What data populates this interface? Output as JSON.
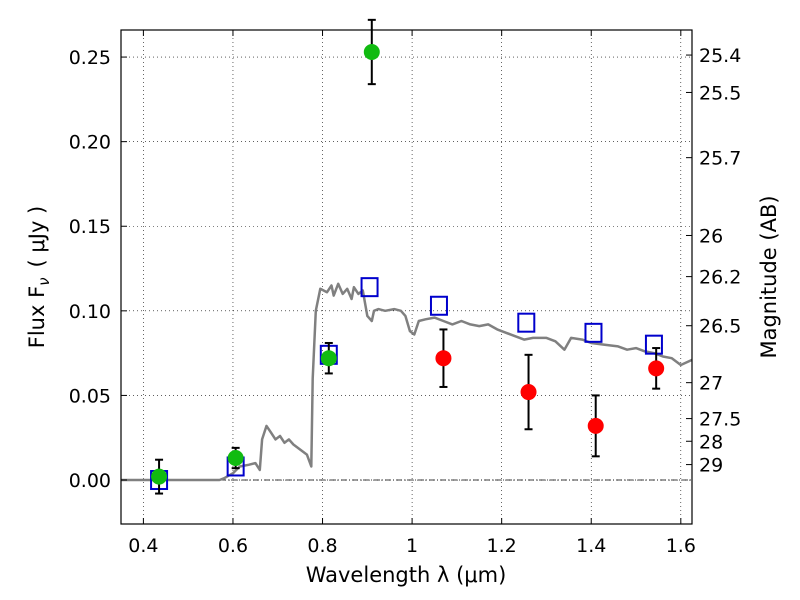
{
  "chart_data": {
    "type": "scatter",
    "xlabel": "Wavelength  λ (μm)",
    "ylabel": "Flux  F",
    "ylabel_sub": "ν",
    "ylabel_unit": "( μJy )",
    "y2label": "Magnitude (AB)",
    "xlim": [
      0.35,
      1.625
    ],
    "ylim": [
      -0.026,
      0.266
    ],
    "x_ticks": [
      {
        "value": 0.4,
        "label": "0.4"
      },
      {
        "value": 0.6,
        "label": "0.6"
      },
      {
        "value": 0.8,
        "label": "0.8"
      },
      {
        "value": 1.0,
        "label": "1"
      },
      {
        "value": 1.2,
        "label": "1.2"
      },
      {
        "value": 1.4,
        "label": "1.4"
      },
      {
        "value": 1.6,
        "label": "1.6"
      }
    ],
    "y_ticks": [
      {
        "value": 0.0,
        "label": "0.00"
      },
      {
        "value": 0.05,
        "label": "0.05"
      },
      {
        "value": 0.1,
        "label": "0.10"
      },
      {
        "value": 0.15,
        "label": "0.15"
      },
      {
        "value": 0.2,
        "label": "0.20"
      },
      {
        "value": 0.25,
        "label": "0.25"
      }
    ],
    "y2_ticks": [
      {
        "mag": 25.4,
        "label": "25.4"
      },
      {
        "mag": 25.5,
        "label": "25.5"
      },
      {
        "mag": 25.7,
        "label": "25.7"
      },
      {
        "mag": 26,
        "label": "26"
      },
      {
        "mag": 26.2,
        "label": "26.2"
      },
      {
        "mag": 26.5,
        "label": "26.5"
      },
      {
        "mag": 27,
        "label": "27"
      },
      {
        "mag": 27.5,
        "label": "27.5"
      },
      {
        "mag": 28,
        "label": "28"
      },
      {
        "mag": 29,
        "label": "29"
      }
    ],
    "grid": true,
    "zero_line": true,
    "colors": {
      "model": "#808080",
      "model_photometry": "#0000cc",
      "detections": "#11bb11",
      "upper_points": "#ff0000",
      "errorbar": "#000000"
    },
    "model_spectrum": [
      [
        0.35,
        0.0
      ],
      [
        0.57,
        0.0
      ],
      [
        0.58,
        0.001
      ],
      [
        0.6,
        0.004
      ],
      [
        0.615,
        0.008
      ],
      [
        0.635,
        0.009
      ],
      [
        0.65,
        0.01
      ],
      [
        0.66,
        0.006
      ],
      [
        0.665,
        0.024
      ],
      [
        0.675,
        0.032
      ],
      [
        0.685,
        0.028
      ],
      [
        0.695,
        0.024
      ],
      [
        0.705,
        0.026
      ],
      [
        0.715,
        0.022
      ],
      [
        0.725,
        0.024
      ],
      [
        0.735,
        0.021
      ],
      [
        0.745,
        0.019
      ],
      [
        0.755,
        0.017
      ],
      [
        0.765,
        0.015
      ],
      [
        0.775,
        0.008
      ],
      [
        0.778,
        0.06
      ],
      [
        0.785,
        0.1
      ],
      [
        0.795,
        0.113
      ],
      [
        0.81,
        0.111
      ],
      [
        0.82,
        0.115
      ],
      [
        0.825,
        0.109
      ],
      [
        0.835,
        0.116
      ],
      [
        0.845,
        0.11
      ],
      [
        0.855,
        0.113
      ],
      [
        0.865,
        0.107
      ],
      [
        0.87,
        0.114
      ],
      [
        0.88,
        0.11
      ],
      [
        0.89,
        0.112
      ],
      [
        0.9,
        0.097
      ],
      [
        0.91,
        0.094
      ],
      [
        0.915,
        0.1
      ],
      [
        0.925,
        0.101
      ],
      [
        0.94,
        0.1
      ],
      [
        0.96,
        0.101
      ],
      [
        0.975,
        0.1
      ],
      [
        0.985,
        0.097
      ],
      [
        0.995,
        0.088
      ],
      [
        1.005,
        0.086
      ],
      [
        1.015,
        0.094
      ],
      [
        1.03,
        0.095
      ],
      [
        1.05,
        0.096
      ],
      [
        1.07,
        0.094
      ],
      [
        1.09,
        0.092
      ],
      [
        1.11,
        0.094
      ],
      [
        1.13,
        0.092
      ],
      [
        1.15,
        0.091
      ],
      [
        1.17,
        0.092
      ],
      [
        1.19,
        0.089
      ],
      [
        1.21,
        0.087
      ],
      [
        1.23,
        0.085
      ],
      [
        1.25,
        0.083
      ],
      [
        1.27,
        0.084
      ],
      [
        1.3,
        0.084
      ],
      [
        1.32,
        0.082
      ],
      [
        1.34,
        0.077
      ],
      [
        1.355,
        0.084
      ],
      [
        1.38,
        0.083
      ],
      [
        1.4,
        0.081
      ],
      [
        1.43,
        0.08
      ],
      [
        1.46,
        0.079
      ],
      [
        1.48,
        0.077
      ],
      [
        1.5,
        0.078
      ],
      [
        1.52,
        0.076
      ],
      [
        1.54,
        0.075
      ],
      [
        1.56,
        0.073
      ],
      [
        1.58,
        0.072
      ],
      [
        1.6,
        0.068
      ],
      [
        1.625,
        0.071
      ]
    ],
    "model_photometry": [
      {
        "x": 0.435,
        "y": 0.0
      },
      {
        "x": 0.606,
        "y": 0.008
      },
      {
        "x": 0.814,
        "y": 0.074
      },
      {
        "x": 0.905,
        "y": 0.114
      },
      {
        "x": 1.06,
        "y": 0.103
      },
      {
        "x": 1.255,
        "y": 0.093
      },
      {
        "x": 1.405,
        "y": 0.087
      },
      {
        "x": 1.54,
        "y": 0.08
      }
    ],
    "detections": [
      {
        "x": 0.435,
        "y": 0.002,
        "yerr": 0.01
      },
      {
        "x": 0.606,
        "y": 0.013,
        "yerr": 0.006
      },
      {
        "x": 0.814,
        "y": 0.072,
        "yerr": 0.009
      },
      {
        "x": 0.91,
        "y": 0.253,
        "yerr": 0.019
      }
    ],
    "upper_points": [
      {
        "x": 1.07,
        "y": 0.072,
        "yerr": 0.017
      },
      {
        "x": 1.26,
        "y": 0.052,
        "yerr": 0.022
      },
      {
        "x": 1.41,
        "y": 0.032,
        "yerr": 0.018
      },
      {
        "x": 1.545,
        "y": 0.066,
        "yerr": 0.012
      }
    ]
  }
}
